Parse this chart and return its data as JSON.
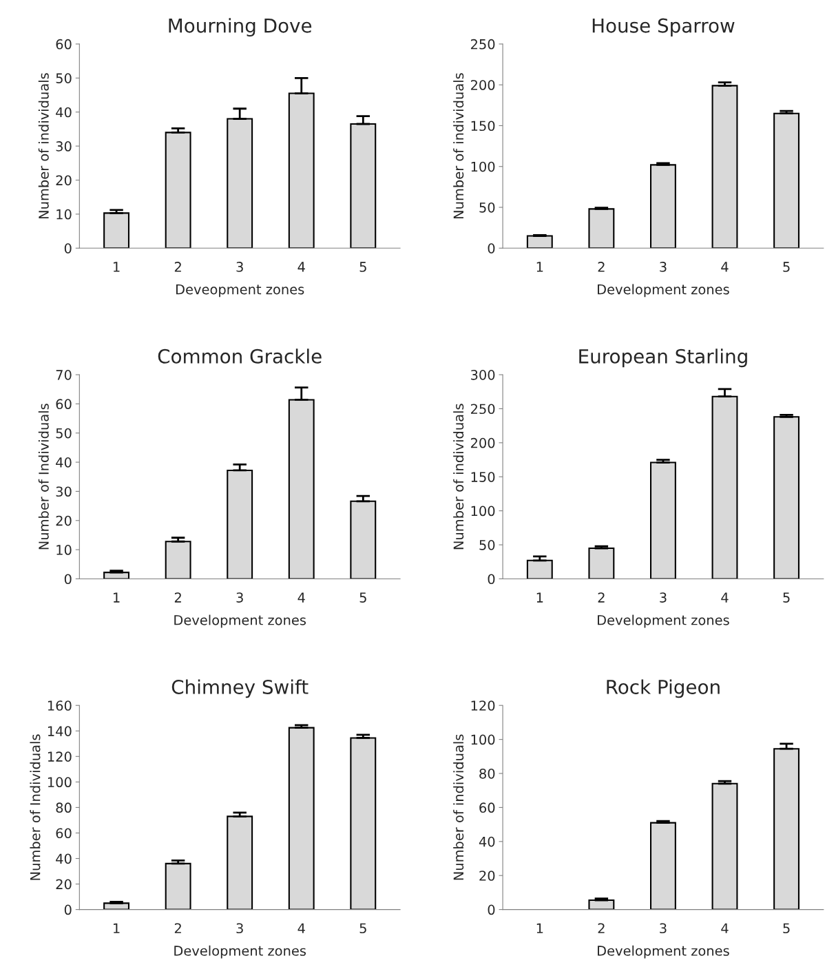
{
  "chart_data": [
    {
      "type": "bar",
      "title": "Mourning Dove",
      "xlabel": "Deveopment zones",
      "ylabel": "Number of individuals",
      "categories": [
        "1",
        "2",
        "3",
        "4",
        "5"
      ],
      "values": [
        10.3,
        34,
        38,
        45.5,
        36.5
      ],
      "errors": [
        [
          10.3,
          11.2
        ],
        [
          34,
          35.2
        ],
        [
          38,
          41
        ],
        [
          45.5,
          50
        ],
        [
          36.5,
          38.8
        ]
      ],
      "color": "#d9d9d9",
      "ylim": [
        0,
        60
      ],
      "yticks": [
        0,
        10,
        20,
        30,
        40,
        50,
        60
      ]
    },
    {
      "type": "bar",
      "title": "House Sparrow",
      "xlabel": "Development zones",
      "ylabel": "Number of individuals",
      "categories": [
        "1",
        "2",
        "3",
        "4",
        "5"
      ],
      "values": [
        15,
        48,
        102,
        199,
        165
      ],
      "errors": [
        [
          15,
          16
        ],
        [
          48,
          49.5
        ],
        [
          102,
          104
        ],
        [
          199,
          203
        ],
        [
          165,
          168
        ]
      ],
      "color": "#d9d9d9",
      "ylim": [
        0,
        250
      ],
      "yticks": [
        0,
        50,
        100,
        150,
        200,
        250
      ]
    },
    {
      "type": "bar",
      "title": "Common Grackle",
      "xlabel": "Development zones",
      "ylabel": "Number of Individuals",
      "categories": [
        "1",
        "2",
        "3",
        "4",
        "5"
      ],
      "values": [
        2.2,
        12.8,
        37.2,
        61.4,
        26.6
      ],
      "errors": [
        [
          2.2,
          2.8
        ],
        [
          12.8,
          14.1
        ],
        [
          37.2,
          39.2
        ],
        [
          61.4,
          65.6
        ],
        [
          26.6,
          28.4
        ]
      ],
      "color": "#d9d9d9",
      "ylim": [
        0,
        70
      ],
      "yticks": [
        0,
        10,
        20,
        30,
        40,
        50,
        60,
        70
      ]
    },
    {
      "type": "bar",
      "title": "European Starling",
      "xlabel": "Development zones",
      "ylabel": "Number of individuals",
      "categories": [
        "1",
        "2",
        "3",
        "4",
        "5"
      ],
      "values": [
        27,
        45,
        171,
        268,
        238
      ],
      "errors": [
        [
          27,
          33
        ],
        [
          45,
          48
        ],
        [
          171,
          175
        ],
        [
          268,
          279
        ],
        [
          238,
          241
        ]
      ],
      "color": "#d9d9d9",
      "ylim": [
        0,
        300
      ],
      "yticks": [
        0,
        50,
        100,
        150,
        200,
        250,
        300
      ]
    },
    {
      "type": "bar",
      "title": "Chimney Swift",
      "xlabel": "Development zones",
      "ylabel": "Number of Individuals",
      "categories": [
        "1",
        "2",
        "3",
        "4",
        "5"
      ],
      "values": [
        5,
        36,
        73,
        142.5,
        134.5
      ],
      "errors": [
        [
          5,
          6
        ],
        [
          36,
          38.5
        ],
        [
          73,
          76
        ],
        [
          142.5,
          144.5
        ],
        [
          134.5,
          137
        ]
      ],
      "color": "#d9d9d9",
      "ylim": [
        0,
        160
      ],
      "yticks": [
        0,
        20,
        40,
        60,
        80,
        100,
        120,
        140,
        160
      ]
    },
    {
      "type": "bar",
      "title": "Rock Pigeon",
      "xlabel": "Development zones",
      "ylabel": "Number of individuals",
      "categories": [
        "1",
        "2",
        "3",
        "4",
        "5"
      ],
      "values": [
        0,
        5.5,
        51,
        74,
        94.5
      ],
      "errors": [
        null,
        [
          5.5,
          6.5
        ],
        [
          51,
          52
        ],
        [
          74,
          75.5
        ],
        [
          94.5,
          97.5
        ]
      ],
      "color": "#d9d9d9",
      "ylim": [
        0,
        120
      ],
      "yticks": [
        0,
        20,
        40,
        60,
        80,
        100,
        120
      ]
    }
  ]
}
